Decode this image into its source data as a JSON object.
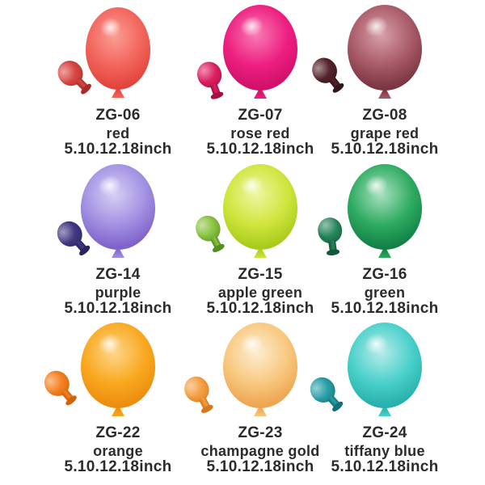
{
  "image": {
    "type": "balloon-product-grid",
    "background": "#ffffff",
    "text_color": "#2b2b2b",
    "rows": 3,
    "cols": 3
  },
  "cells": [
    {
      "code": "ZG-06",
      "name": "red",
      "size": "5.10.12.18inch",
      "colors": {
        "highlight": "#fb9e94",
        "body": "#f2655c",
        "edge": "#e2443c",
        "small_body": "#d94643",
        "small_dark": "#a92c2b"
      }
    },
    {
      "code": "ZG-07",
      "name": "rose red",
      "size": "5.10.12.18inch",
      "colors": {
        "highlight": "#f97bb4",
        "body": "#ed1f80",
        "edge": "#d01069",
        "small_body": "#de1e63",
        "small_dark": "#a60f46"
      }
    },
    {
      "code": "ZG-08",
      "name": "grape red",
      "size": "5.10.12.18inch",
      "colors": {
        "highlight": "#d9a0ab",
        "body": "#a85a67",
        "edge": "#7a3641",
        "small_body": "#55232b",
        "small_dark": "#331419"
      }
    },
    {
      "code": "ZG-14",
      "name": "purple",
      "size": "5.10.12.18inch",
      "colors": {
        "highlight": "#d8cff5",
        "body": "#a291e2",
        "edge": "#7f62ca",
        "small_body": "#413984",
        "small_dark": "#292459"
      }
    },
    {
      "code": "ZG-15",
      "name": "apple green",
      "size": "5.10.12.18inch",
      "colors": {
        "highlight": "#eef7a2",
        "body": "#cfe53d",
        "edge": "#a8cb1b",
        "small_body": "#8ac440",
        "small_dark": "#548f22"
      }
    },
    {
      "code": "ZG-16",
      "name": "green",
      "size": "5.10.12.18inch",
      "colors": {
        "highlight": "#a9e1c1",
        "body": "#2fab61",
        "edge": "#128147",
        "small_body": "#27855a",
        "small_dark": "#14573a"
      }
    },
    {
      "code": "ZG-22",
      "name": "orange",
      "size": "5.10.12.18inch",
      "colors": {
        "highlight": "#fdd78c",
        "body": "#f9a81f",
        "edge": "#ec8d0e",
        "small_body": "#f58020",
        "small_dark": "#cf620c"
      }
    },
    {
      "code": "ZG-23",
      "name": "champagne gold",
      "size": "5.10.12.18inch",
      "colors": {
        "highlight": "#fdeed2",
        "body": "#f8c87f",
        "edge": "#eda551",
        "small_body": "#f59e40",
        "small_dark": "#d4791f"
      }
    },
    {
      "code": "ZG-24",
      "name": "tiffany blue",
      "size": "5.10.12.18inch",
      "colors": {
        "highlight": "#b8ecea",
        "body": "#49d0ca",
        "edge": "#27b0ac",
        "small_body": "#28a0a8",
        "small_dark": "#137179"
      }
    }
  ]
}
